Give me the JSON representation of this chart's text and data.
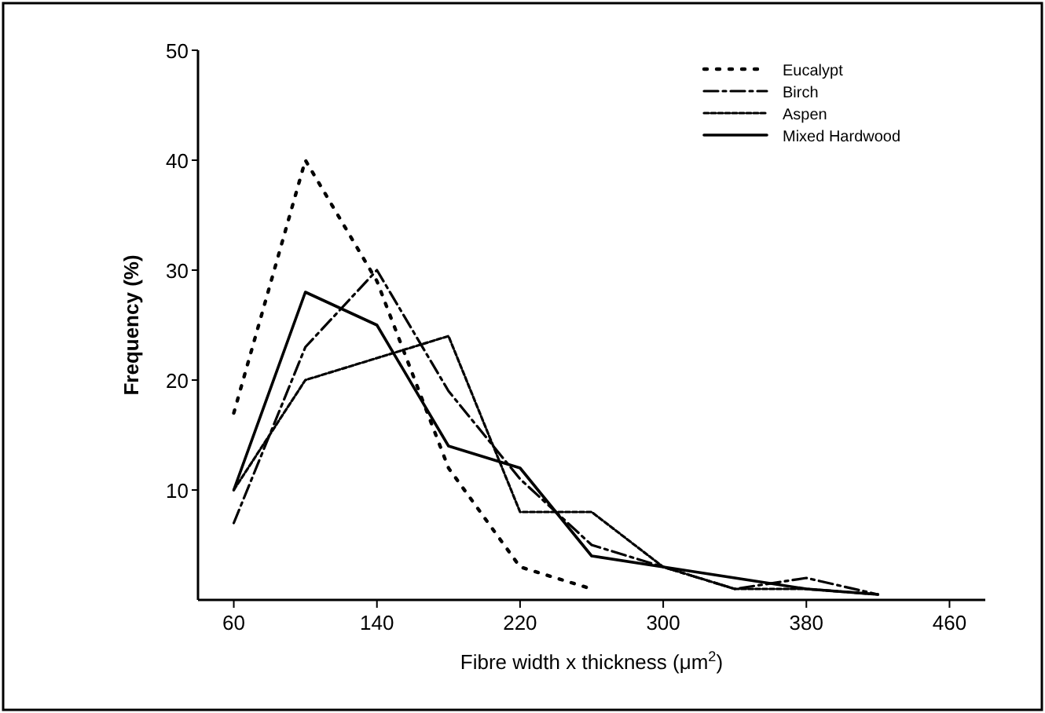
{
  "chart_data": {
    "type": "line",
    "xlabel": "Fibre width x thickness (μm$^{2}$)",
    "ylabel": "Frequency (%)",
    "x": [
      60,
      100,
      140,
      180,
      220,
      260,
      300,
      340,
      380,
      420
    ],
    "xlim": [
      40,
      480
    ],
    "xticks": [
      60,
      140,
      220,
      300,
      380,
      460
    ],
    "ylim": [
      0,
      50
    ],
    "yticks": [
      10,
      20,
      30,
      40,
      50
    ],
    "grid": false,
    "legend": "top right",
    "marker": "none",
    "series": [
      {
        "name": "Eucalypt",
        "color": "#000000",
        "line_style": "dotted",
        "values": [
          17,
          40,
          29,
          12,
          3,
          1,
          null,
          null,
          null,
          null
        ]
      },
      {
        "name": "Birch",
        "color": "#000000",
        "line_style": "dashdot",
        "values": [
          7,
          23,
          30,
          19,
          11,
          5,
          3,
          1,
          2,
          0.5
        ]
      },
      {
        "name": "Aspen",
        "color": "#000000",
        "line_style": "dashed",
        "values": [
          10,
          20,
          22,
          24,
          8,
          8,
          3,
          1,
          1,
          0.5
        ]
      },
      {
        "name": "Mixed Hardwood",
        "color": "#000000",
        "line_style": "solid",
        "values": [
          10,
          28,
          25,
          14,
          12,
          4,
          3,
          2,
          1,
          0.5
        ]
      }
    ]
  }
}
